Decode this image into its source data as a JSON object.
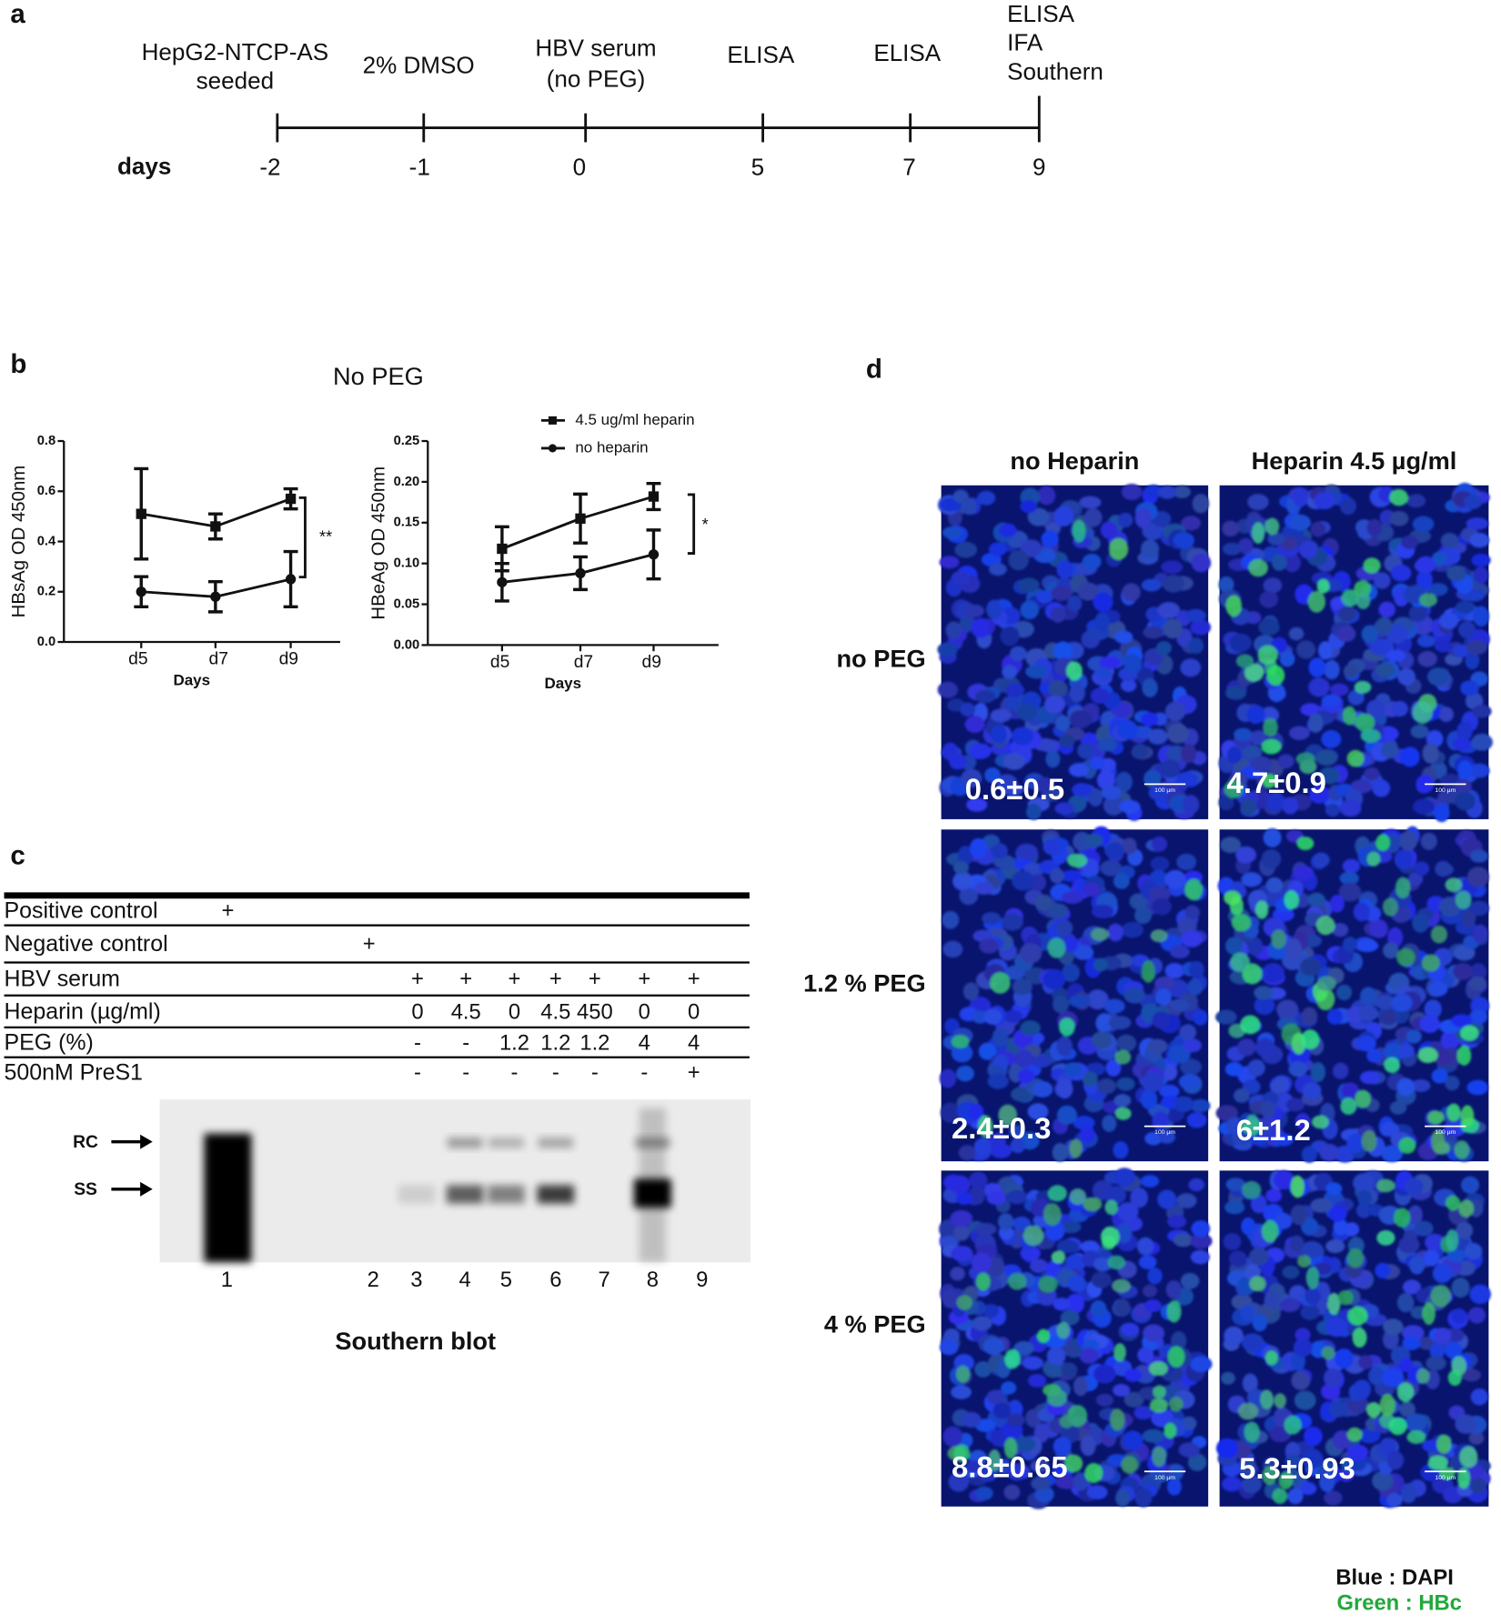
{
  "panel_a": {
    "label": "a",
    "events": [
      [
        "HepG2-NTCP-AS",
        "seeded"
      ],
      [
        "2% DMSO"
      ],
      [
        "HBV serum",
        "(no PEG)"
      ],
      [
        "ELISA"
      ],
      [
        "ELISA"
      ],
      [
        "ELISA",
        "IFA",
        "Southern"
      ]
    ],
    "days_label": "days",
    "days": [
      -2,
      -1,
      0,
      5,
      7,
      9
    ]
  },
  "panel_b": {
    "label": "b",
    "title": "No PEG"
  },
  "chart_data": [
    {
      "type": "line",
      "ylabel": "HBsAg OD 450nm",
      "xlabel": "Days",
      "categories": [
        "d5",
        "d7",
        "d9"
      ],
      "ylim": [
        0,
        0.8
      ],
      "yticks": [
        {
          "value": 0,
          "label": "0.0"
        },
        0.2,
        0.4,
        0.6,
        0.8
      ],
      "color": "#111111",
      "annotation": "**",
      "series": [
        {
          "marker": "square",
          "values": [
            0.51,
            0.46,
            0.57
          ],
          "errors": [
            0.18,
            0.05,
            0.04
          ]
        },
        {
          "marker": "circle",
          "values": [
            0.2,
            0.18,
            0.25
          ],
          "errors": [
            0.06,
            0.06,
            0.11
          ]
        }
      ]
    },
    {
      "type": "line",
      "ylabel": "HBeAg OD 450nm",
      "xlabel": "Days",
      "categories": [
        "d5",
        "d7",
        "d9"
      ],
      "ylim": [
        0,
        0.25
      ],
      "yticks": [
        {
          "value": 0,
          "label": "0.00"
        },
        0.05,
        {
          "value": 0.1,
          "label": "0.10"
        },
        0.15,
        {
          "value": 0.2,
          "label": "0.20"
        },
        0.25
      ],
      "color": "#111111",
      "annotation": "*",
      "series": [
        {
          "name": "4.5 ug/ml heparin",
          "marker": "square",
          "values": [
            0.118,
            0.155,
            0.182
          ],
          "errors": [
            0.027,
            0.03,
            0.016
          ]
        },
        {
          "name": "no heparin",
          "marker": "circle",
          "values": [
            0.077,
            0.088,
            0.111
          ],
          "errors": [
            0.023,
            0.02,
            0.03
          ]
        }
      ]
    }
  ],
  "panel_c": {
    "label": "c",
    "rows": [
      {
        "label": "Positive control",
        "cells": [
          "+",
          null,
          null,
          null,
          null,
          null,
          null,
          null,
          null
        ]
      },
      {
        "label": "Negative control",
        "cells": [
          null,
          "+",
          null,
          null,
          null,
          null,
          null,
          null,
          null
        ]
      },
      {
        "label": "HBV serum",
        "cells": [
          null,
          null,
          "+",
          "+",
          "+",
          "+",
          "+",
          "+",
          "+"
        ]
      },
      {
        "label": "Heparin (µg/ml)",
        "cells": [
          null,
          null,
          0,
          4.5,
          0,
          4.5,
          450,
          0,
          0
        ]
      },
      {
        "label": "PEG (%)",
        "cells": [
          null,
          null,
          "-",
          "-",
          1.2,
          1.2,
          1.2,
          4,
          4
        ]
      },
      {
        "label": "500nM PreS1",
        "cells": [
          null,
          null,
          "-",
          "-",
          "-",
          "-",
          "-",
          "-",
          "+"
        ]
      }
    ],
    "blot": {
      "bands": [
        "RC",
        "SS"
      ],
      "lanes": [
        1,
        2,
        3,
        4,
        5,
        6,
        7,
        8,
        9
      ]
    },
    "caption": "Southern blot"
  },
  "panel_d": {
    "label": "d",
    "columns": [
      "no Heparin",
      "Heparin 4.5 µg/ml"
    ],
    "rows": [
      {
        "label": "no PEG",
        "values": [
          "0.6±0.5",
          "4.7±0.9"
        ]
      },
      {
        "label": "1.2 % PEG",
        "values": [
          "2.4±0.3",
          "6±1.2"
        ]
      },
      {
        "label": "4 % PEG",
        "values": [
          "8.8±0.65",
          "5.3±0.93"
        ]
      }
    ],
    "scale_bar": "100 µm",
    "legend": [
      "Blue : DAPI",
      "Green : HBc"
    ]
  }
}
